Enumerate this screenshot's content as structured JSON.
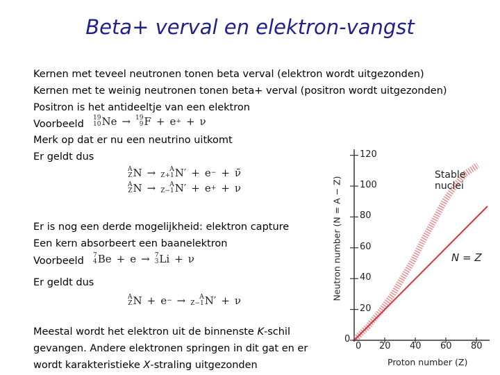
{
  "title": "Beta+ verval en elektron-vangst",
  "lines_top": [
    "Kernen met teveel neutronen tonen beta verval (elektron wordt uitgezonden)",
    "Kernen met te weinig neutronen tonen beta+ verval (positron wordt uitgezonden)",
    "Positron is het antideeltje van een elektron"
  ],
  "example1": {
    "label": "Voorbeeld",
    "equation": [
      {
        "sup": "19",
        "sub": "10",
        "sym": "Ne"
      },
      {
        "sym": "→"
      },
      {
        "sup": "19",
        "sub": "9",
        "sym": "F"
      },
      {
        "sym": "+"
      },
      {
        "sym": "e",
        "rsup": "+"
      },
      {
        "sym": "+"
      },
      {
        "sym": "ν"
      }
    ]
  },
  "remark": "Merk op dat er nu een neutrino uitkomt",
  "result1": {
    "label": "Er geldt dus",
    "equations": [
      [
        {
          "sup": "A",
          "sub": "Z",
          "sym": "N"
        },
        {
          "sym": "→"
        },
        {
          "sup": "A",
          "sub": "Z+1",
          "sym": "N′"
        },
        {
          "sym": "+"
        },
        {
          "sym": "e",
          "rsup": "−"
        },
        {
          "sym": "+"
        },
        {
          "sym": "ν̄"
        }
      ],
      [
        {
          "sup": "A",
          "sub": "Z",
          "sym": "N"
        },
        {
          "sym": "→"
        },
        {
          "sup": "A",
          "sub": "Z−1",
          "sym": "N′"
        },
        {
          "sym": "+"
        },
        {
          "sym": "e",
          "rsup": "+"
        },
        {
          "sym": "+"
        },
        {
          "sym": "ν"
        }
      ]
    ]
  },
  "lines_mid": [
    "Er is nog een derde mogelijkheid: elektron capture",
    "Een kern absorbeert een baanelektron"
  ],
  "example2": {
    "label": "Voorbeeld",
    "equation": [
      {
        "sup": "7",
        "sub": "4",
        "sym": "Be"
      },
      {
        "sym": "+"
      },
      {
        "sym": "e"
      },
      {
        "sym": "→"
      },
      {
        "sup": "7",
        "sub": "3",
        "sym": "Li"
      },
      {
        "sym": "+"
      },
      {
        "sym": "ν"
      }
    ]
  },
  "result2": {
    "label": "Er geldt dus",
    "equation": [
      {
        "sup": "A",
        "sub": "Z",
        "sym": "N"
      },
      {
        "sym": "+"
      },
      {
        "sym": "e",
        "rsup": "−"
      },
      {
        "sym": "→"
      },
      {
        "sup": "A",
        "sub": "Z−1",
        "sym": "N′"
      },
      {
        "sym": "+"
      },
      {
        "sym": "ν"
      }
    ]
  },
  "closing": [
    [
      "Meestal wordt het elektron uit de binnenste ",
      "K",
      "-schil"
    ],
    [
      "gevangen. Andere elektronen springen in dit gat en er"
    ],
    [
      "wordt karakteristieke ",
      "X",
      "-straling uitgezonden"
    ]
  ],
  "figure": {
    "y_label": "Neutron number (N = A − Z)",
    "x_label": "Proton number (Z)",
    "yticks": [
      0,
      20,
      40,
      60,
      80,
      100,
      120
    ],
    "xticks": [
      0,
      20,
      40,
      60,
      80
    ],
    "stable_label": [
      "Stable",
      "nuclei"
    ],
    "line_label": "N = Z"
  }
}
